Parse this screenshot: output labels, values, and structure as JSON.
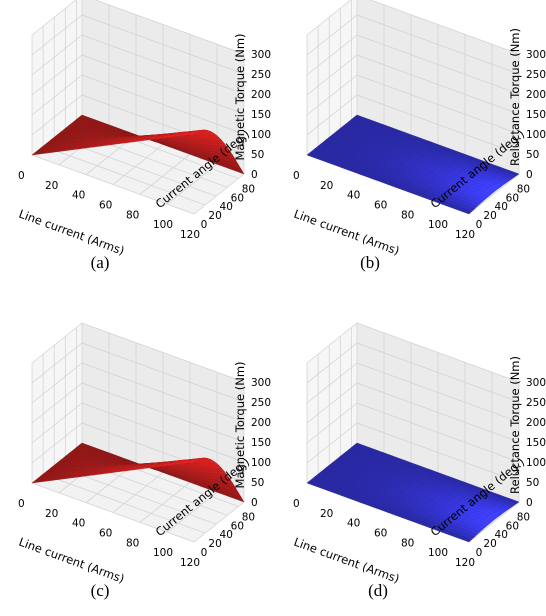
{
  "chart_data": [
    {
      "type": "surface3d",
      "panel": "(a)",
      "xlabel": "Line current (Arms)",
      "ylabel": "Current angle (deg.)",
      "zlabel": "Magnetic Torque (Nm)",
      "x_ticks": [
        0,
        20,
        40,
        60,
        80,
        100,
        120
      ],
      "y_ticks": [
        0,
        20,
        40,
        60,
        80
      ],
      "z_ticks": [
        0,
        50,
        100,
        150,
        200,
        250,
        300
      ],
      "xlim": [
        0,
        120
      ],
      "ylim": [
        0,
        90
      ],
      "zlim": [
        0,
        300
      ],
      "surface": "magnetic",
      "peak_torque": 200,
      "color": "#d62020"
    },
    {
      "type": "surface3d",
      "panel": "(b)",
      "xlabel": "Line current (Arms)",
      "ylabel": "Current angle (deg.)",
      "zlabel": "Reluctance Torque (Nm)",
      "x_ticks": [
        0,
        20,
        40,
        60,
        80,
        100,
        120
      ],
      "y_ticks": [
        0,
        20,
        40,
        60,
        80
      ],
      "z_ticks": [
        0,
        50,
        100,
        150,
        200,
        250,
        300
      ],
      "xlim": [
        0,
        120
      ],
      "ylim": [
        0,
        90
      ],
      "zlim": [
        0,
        300
      ],
      "surface": "reluctance",
      "peak_torque": 5,
      "color": "#3a3af0"
    },
    {
      "type": "surface3d",
      "panel": "(c)",
      "xlabel": "Line current (Arms)",
      "ylabel": "Current angle (deg.)",
      "zlabel": "Magnetic Torque (Nm)",
      "x_ticks": [
        0,
        20,
        40,
        60,
        80,
        100,
        120
      ],
      "y_ticks": [
        0,
        20,
        40,
        60,
        80
      ],
      "z_ticks": [
        0,
        50,
        100,
        150,
        200,
        250,
        300
      ],
      "xlim": [
        0,
        120
      ],
      "ylim": [
        0,
        90
      ],
      "zlim": [
        0,
        300
      ],
      "surface": "magnetic",
      "peak_torque": 200,
      "color": "#d62020"
    },
    {
      "type": "surface3d",
      "panel": "(d)",
      "xlabel": "Line current (Arms)",
      "ylabel": "Current angle (deg.)",
      "zlabel": "Reluctance Torque (Nm)",
      "x_ticks": [
        0,
        20,
        40,
        60,
        80,
        100,
        120
      ],
      "y_ticks": [
        0,
        20,
        40,
        60,
        80
      ],
      "z_ticks": [
        0,
        50,
        100,
        150,
        200,
        250,
        300
      ],
      "xlim": [
        0,
        120
      ],
      "ylim": [
        0,
        90
      ],
      "zlim": [
        0,
        300
      ],
      "surface": "reluctance",
      "peak_torque": 5,
      "color": "#3a3af0"
    }
  ]
}
